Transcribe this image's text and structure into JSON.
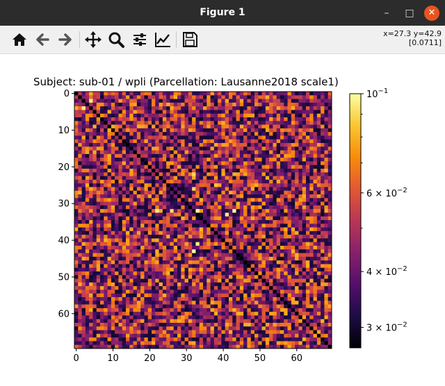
{
  "window": {
    "title": "Figure 1",
    "minimize_glyph": "–",
    "maximize_glyph": "□",
    "close_glyph": "✕"
  },
  "toolbar": {
    "buttons": [
      {
        "name": "home-icon",
        "action": "Reset original view"
      },
      {
        "name": "back-arrow-icon",
        "action": "Back to previous view"
      },
      {
        "name": "forward-arrow-icon",
        "action": "Forward to next view"
      },
      {
        "name": "pan-move-icon",
        "action": "Pan axes"
      },
      {
        "name": "zoom-magnifier-icon",
        "action": "Zoom to rectangle"
      },
      {
        "name": "configure-subplots-icon",
        "action": "Configure subplots"
      },
      {
        "name": "edit-axes-lines-icon",
        "action": "Edit axis, curve and image parameters"
      },
      {
        "name": "save-floppy-icon",
        "action": "Save the figure"
      }
    ],
    "coords_line1": "x=27.3 y=42.9",
    "coords_line2": "[0.0711]"
  },
  "chart_data": {
    "type": "heatmap",
    "title": "Subject: sub-01 / wpli (Parcellation: Lausanne2018 scale1)",
    "n": 70,
    "x_ticks": [
      0,
      10,
      20,
      30,
      40,
      50,
      60
    ],
    "y_ticks": [
      0,
      10,
      20,
      30,
      40,
      50,
      60
    ],
    "colormap": "inferno",
    "colorbar": {
      "scale": "log",
      "vmin": 0.027,
      "vmax": 0.1,
      "ticks": [
        {
          "value": 0.1,
          "label": "10",
          "exp": "−1"
        },
        {
          "value": 0.06,
          "label": "6 × 10",
          "exp": "−2"
        },
        {
          "value": 0.04,
          "label": "4 × 10",
          "exp": "−2"
        },
        {
          "value": 0.03,
          "label": "3 × 10",
          "exp": "−2"
        }
      ],
      "minor_ticks": [
        0.05,
        0.07,
        0.08,
        0.09
      ]
    },
    "diagonal_value": 0.027,
    "value_range_offdiag": [
      0.03,
      0.08
    ],
    "bright_cells": [
      {
        "i": 32,
        "j": 22,
        "v": 0.095
      },
      {
        "i": 32,
        "j": 26,
        "v": 0.09
      },
      {
        "i": 32,
        "j": 33,
        "v": 0.1
      },
      {
        "i": 32,
        "j": 43,
        "v": 0.1
      },
      {
        "i": 41,
        "j": 33,
        "v": 0.095
      },
      {
        "i": 22,
        "j": 32,
        "v": 0.09
      },
      {
        "i": 26,
        "j": 32,
        "v": 0.09
      },
      {
        "i": 33,
        "j": 41,
        "v": 0.095
      },
      {
        "i": 43,
        "j": 32,
        "v": 0.1
      },
      {
        "i": 25,
        "j": 38,
        "v": 0.085
      },
      {
        "i": 30,
        "j": 44,
        "v": 0.08
      },
      {
        "i": 37,
        "j": 34,
        "v": 0.082
      },
      {
        "i": 4,
        "j": 2,
        "v": 0.095
      },
      {
        "i": 2,
        "j": 4,
        "v": 0.095
      }
    ]
  }
}
